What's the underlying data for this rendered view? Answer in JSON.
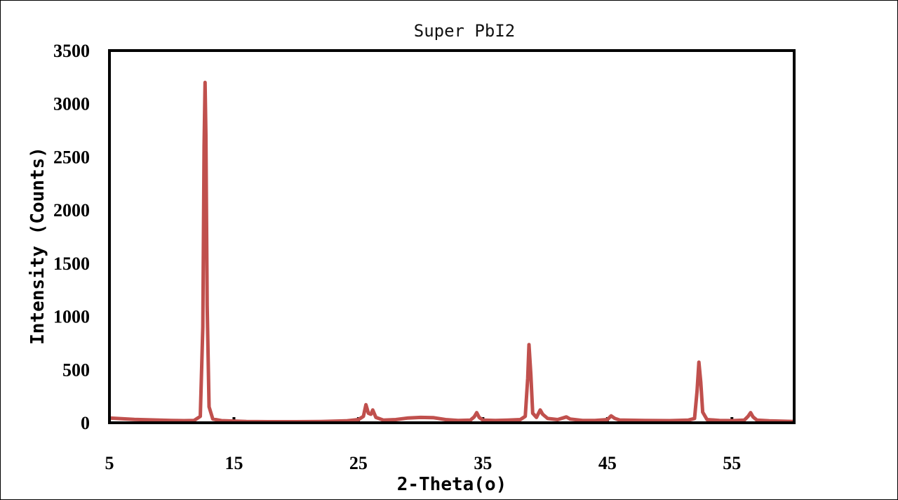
{
  "chart_data": {
    "type": "line",
    "title": "Super PbI2",
    "xlabel": "2-Theta(o)",
    "ylabel": "Intensity (Counts)",
    "xlim": [
      5,
      60
    ],
    "ylim": [
      0,
      3500
    ],
    "x_ticks": [
      "5",
      "15",
      "25",
      "35",
      "45",
      "55"
    ],
    "y_ticks": [
      "0",
      "500",
      "1000",
      "1500",
      "2000",
      "2500",
      "3000",
      "3500"
    ],
    "grid": false,
    "legend": "none",
    "series": [
      {
        "color": "#c0504d",
        "points": [
          [
            5.0,
            45
          ],
          [
            6.0,
            38
          ],
          [
            7.0,
            32
          ],
          [
            8.0,
            28
          ],
          [
            9.0,
            25
          ],
          [
            10.0,
            22
          ],
          [
            11.0,
            20
          ],
          [
            11.8,
            22
          ],
          [
            12.3,
            60
          ],
          [
            12.5,
            900
          ],
          [
            12.6,
            2600
          ],
          [
            12.68,
            3200
          ],
          [
            12.75,
            2700
          ],
          [
            12.85,
            1100
          ],
          [
            13.0,
            150
          ],
          [
            13.3,
            35
          ],
          [
            14.0,
            20
          ],
          [
            16.0,
            12
          ],
          [
            18.0,
            10
          ],
          [
            20.0,
            10
          ],
          [
            22.0,
            12
          ],
          [
            24.0,
            18
          ],
          [
            25.0,
            30
          ],
          [
            25.4,
            60
          ],
          [
            25.6,
            170
          ],
          [
            25.8,
            90
          ],
          [
            26.0,
            80
          ],
          [
            26.15,
            120
          ],
          [
            26.4,
            50
          ],
          [
            27.0,
            25
          ],
          [
            28.0,
            30
          ],
          [
            29.0,
            45
          ],
          [
            30.0,
            50
          ],
          [
            31.0,
            48
          ],
          [
            32.0,
            30
          ],
          [
            33.0,
            22
          ],
          [
            34.0,
            25
          ],
          [
            34.3,
            55
          ],
          [
            34.5,
            95
          ],
          [
            34.7,
            50
          ],
          [
            35.0,
            25
          ],
          [
            36.0,
            22
          ],
          [
            37.0,
            25
          ],
          [
            38.0,
            30
          ],
          [
            38.4,
            60
          ],
          [
            38.6,
            420
          ],
          [
            38.7,
            735
          ],
          [
            38.85,
            450
          ],
          [
            39.0,
            90
          ],
          [
            39.3,
            50
          ],
          [
            39.6,
            120
          ],
          [
            39.8,
            80
          ],
          [
            40.2,
            40
          ],
          [
            41.0,
            30
          ],
          [
            41.7,
            55
          ],
          [
            42.0,
            35
          ],
          [
            43.0,
            22
          ],
          [
            44.0,
            22
          ],
          [
            45.0,
            30
          ],
          [
            45.3,
            65
          ],
          [
            45.6,
            40
          ],
          [
            46.0,
            25
          ],
          [
            48.0,
            22
          ],
          [
            50.0,
            20
          ],
          [
            51.5,
            25
          ],
          [
            52.0,
            40
          ],
          [
            52.2,
            300
          ],
          [
            52.35,
            570
          ],
          [
            52.5,
            380
          ],
          [
            52.65,
            100
          ],
          [
            53.0,
            30
          ],
          [
            54.0,
            22
          ],
          [
            55.0,
            20
          ],
          [
            56.0,
            25
          ],
          [
            56.3,
            60
          ],
          [
            56.5,
            95
          ],
          [
            56.7,
            55
          ],
          [
            57.0,
            25
          ],
          [
            58.0,
            18
          ],
          [
            59.0,
            15
          ],
          [
            60.0,
            12
          ]
        ]
      }
    ]
  }
}
